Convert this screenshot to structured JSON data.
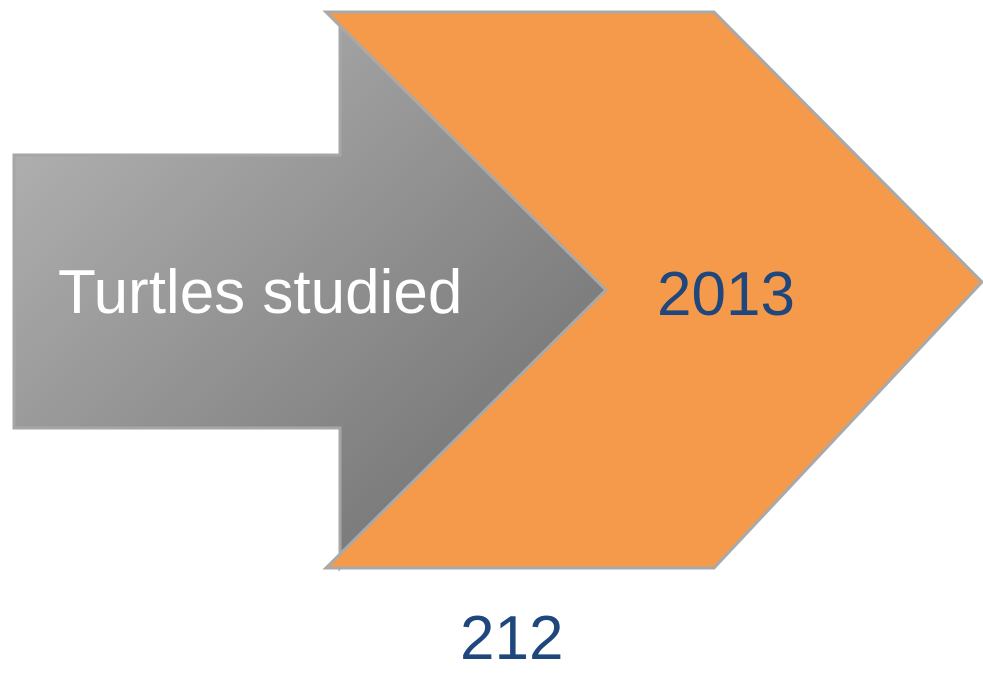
{
  "diagram": {
    "arrow_label": "Turtles studied",
    "chevron_label": "2013",
    "count_label": "212"
  },
  "colors": {
    "arrow_fill_light": "#b3b3b3",
    "arrow_fill_dark": "#6f6f6f",
    "arrow_stroke": "#a6a6a6",
    "chevron_fill": "#f59a4a",
    "chevron_stroke": "#a9a9a9",
    "label_text_white": "#ffffff",
    "label_text_blue": "#1f477d"
  }
}
